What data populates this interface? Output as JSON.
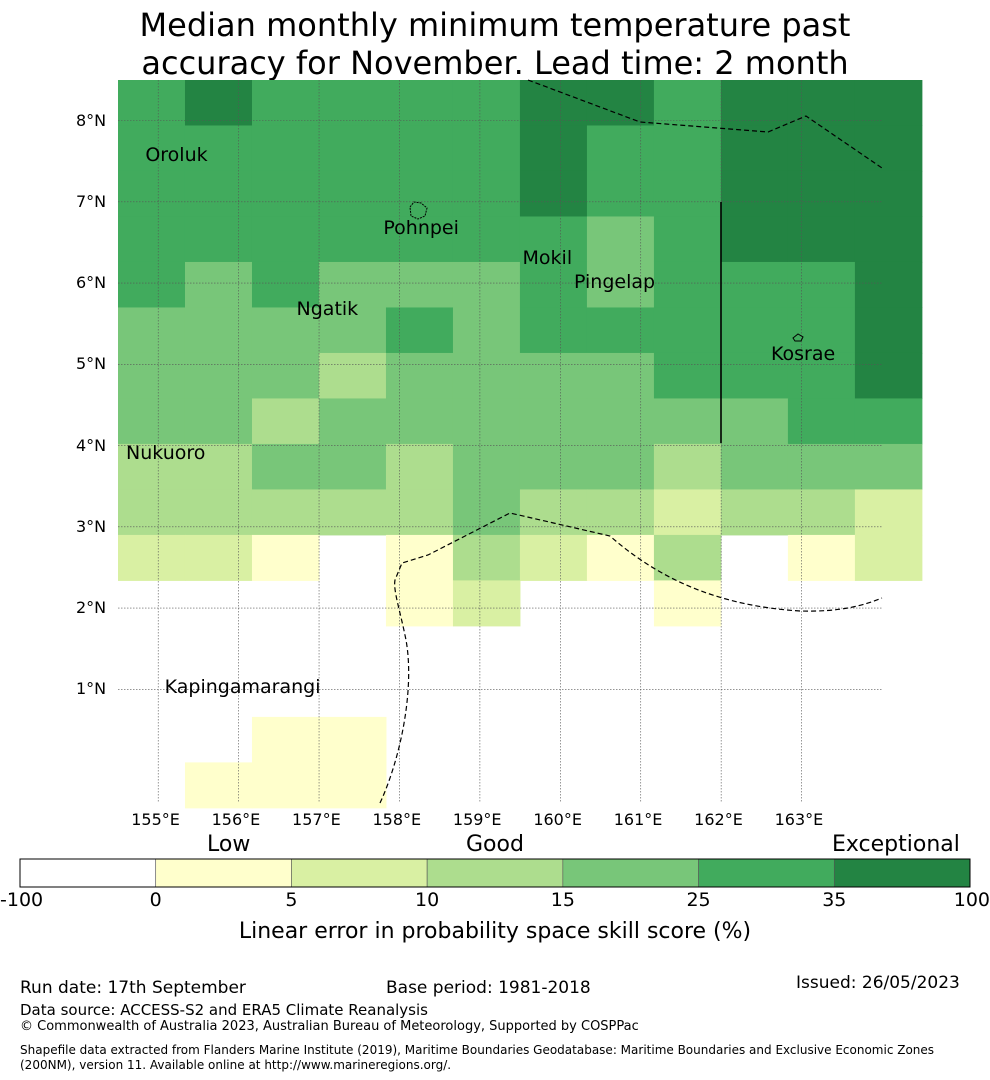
{
  "title_line1": "Median monthly minimum temperature past",
  "title_line2": "accuracy for November. Lead time: 2 month",
  "map": {
    "lon_min": 154.5,
    "lon_max": 164.0,
    "lat_min": -0.4,
    "lat_max": 8.5,
    "lat_labels": [
      {
        "lat": 8,
        "text": "8°N"
      },
      {
        "lat": 7,
        "text": "7°N"
      },
      {
        "lat": 6,
        "text": "6°N"
      },
      {
        "lat": 5,
        "text": "5°N"
      },
      {
        "lat": 4,
        "text": "4°N"
      },
      {
        "lat": 3,
        "text": "3°N"
      },
      {
        "lat": 2,
        "text": "2°N"
      },
      {
        "lat": 1,
        "text": "1°N"
      }
    ],
    "lon_labels": [
      {
        "lon": 155,
        "text": "155°E"
      },
      {
        "lon": 156,
        "text": "156°E"
      },
      {
        "lon": 157,
        "text": "157°E"
      },
      {
        "lon": 158,
        "text": "158°E"
      },
      {
        "lon": 159,
        "text": "159°E"
      },
      {
        "lon": 160,
        "text": "160°E"
      },
      {
        "lon": 161,
        "text": "161°E"
      },
      {
        "lon": 162,
        "text": "162°E"
      },
      {
        "lon": 163,
        "text": "163°E"
      }
    ],
    "grid_lon_start": 154.5,
    "grid_lon_step": 0.833,
    "grid_lat_top": 8.5,
    "grid_lat_step": 0.56,
    "grid_classes": [
      [
        5,
        6,
        5,
        5,
        5,
        5,
        6,
        6,
        5,
        6,
        6,
        6
      ],
      [
        5,
        5,
        5,
        5,
        5,
        5,
        6,
        5,
        5,
        6,
        6,
        6
      ],
      [
        5,
        5,
        5,
        5,
        5,
        5,
        6,
        5,
        5,
        6,
        6,
        6
      ],
      [
        5,
        5,
        5,
        5,
        5,
        5,
        5,
        4,
        5,
        6,
        6,
        6
      ],
      [
        5,
        4,
        5,
        4,
        4,
        4,
        5,
        4,
        5,
        5,
        5,
        6
      ],
      [
        4,
        4,
        4,
        4,
        5,
        4,
        5,
        5,
        5,
        5,
        5,
        6
      ],
      [
        4,
        4,
        4,
        3,
        4,
        4,
        4,
        4,
        5,
        5,
        5,
        6
      ],
      [
        4,
        4,
        3,
        4,
        4,
        4,
        4,
        4,
        4,
        4,
        5,
        5
      ],
      [
        3,
        3,
        4,
        4,
        3,
        4,
        4,
        4,
        3,
        4,
        4,
        4
      ],
      [
        3,
        3,
        3,
        3,
        3,
        4,
        3,
        3,
        2,
        3,
        3,
        2
      ],
      [
        2,
        2,
        1,
        0,
        1,
        3,
        2,
        1,
        3,
        0,
        1,
        2
      ],
      [
        0,
        0,
        0,
        0,
        1,
        2,
        0,
        0,
        1,
        0,
        0,
        0
      ],
      [
        0,
        0,
        0,
        0,
        0,
        0,
        0,
        0,
        0,
        0,
        0,
        0
      ],
      [
        0,
        0,
        0,
        0,
        0,
        0,
        0,
        0,
        0,
        0,
        0,
        0
      ],
      [
        0,
        0,
        1,
        1,
        0,
        0,
        0,
        0,
        0,
        0,
        0,
        0
      ],
      [
        0,
        1,
        1,
        1,
        0,
        0,
        0,
        0,
        0,
        0,
        0,
        0
      ]
    ],
    "places": [
      {
        "name": "Oroluk",
        "lon": 154.84,
        "lat": 7.57
      },
      {
        "name": "Pohnpei",
        "lon": 157.8,
        "lat": 6.67
      },
      {
        "name": "Mokil",
        "lon": 159.53,
        "lat": 6.3
      },
      {
        "name": "Pingelap",
        "lon": 160.17,
        "lat": 6.0
      },
      {
        "name": "Ngatik",
        "lon": 156.72,
        "lat": 5.67
      },
      {
        "name": "Kosrae",
        "lon": 162.62,
        "lat": 5.12
      },
      {
        "name": "Nukuoro",
        "lon": 154.6,
        "lat": 3.9
      },
      {
        "name": "Kapingamarangi",
        "lon": 155.08,
        "lat": 1.02
      }
    ]
  },
  "legend": {
    "low": "Low",
    "good": "Good",
    "exceptional": "Exceptional",
    "colors": [
      "#ffffff",
      "#ffffcc",
      "#d9f0a3",
      "#addd8e",
      "#78c679",
      "#41ab5d",
      "#238443"
    ],
    "ticks": [
      "-100",
      "0",
      "5",
      "10",
      "15",
      "25",
      "35",
      "100"
    ],
    "label": "Linear error in probability space skill score (%)"
  },
  "footer": {
    "run_date": "Run date: 17th September",
    "base_period": "Base period: 1981-2018",
    "issued": "Issued: 26/05/2023",
    "data_source": "Data source: ACCESS-S2 and ERA5 Climate Reanalysis",
    "copyright": "© Commonwealth of Australia 2023, Australian Bureau of Meteorology, Supported by COSPPac",
    "shapefile_1": "Shapefile data extracted from Flanders Marine Institute (2019), Maritime Boundaries Geodatabase: Maritime Boundaries and Exclusive Economic Zones",
    "shapefile_2": "(200NM), version 11. Available online at http://www.marineregions.org/."
  }
}
